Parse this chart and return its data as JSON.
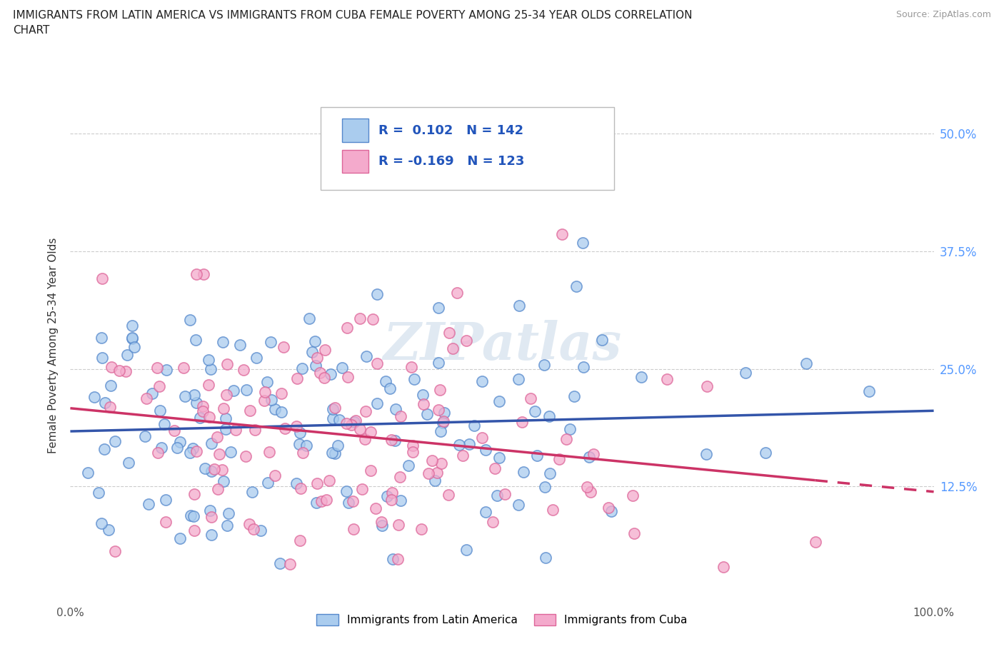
{
  "title": "IMMIGRANTS FROM LATIN AMERICA VS IMMIGRANTS FROM CUBA FEMALE POVERTY AMONG 25-34 YEAR OLDS CORRELATION\nCHART",
  "source_text": "Source: ZipAtlas.com",
  "ylabel": "Female Poverty Among 25-34 Year Olds",
  "xlim": [
    0.0,
    1.0
  ],
  "ylim": [
    0.0,
    0.55
  ],
  "ytick_positions": [
    0.125,
    0.25,
    0.375,
    0.5
  ],
  "ytick_labels": [
    "12.5%",
    "25.0%",
    "37.5%",
    "50.0%"
  ],
  "background_color": "#ffffff",
  "series1_face_color": "#aaccee",
  "series1_edge_color": "#5588cc",
  "series2_face_color": "#f4aacc",
  "series2_edge_color": "#dd6699",
  "series1_line_color": "#3355aa",
  "series2_line_color": "#cc3366",
  "R1": 0.102,
  "N1": 142,
  "R2": -0.169,
  "N2": 123,
  "legend_label1": "Immigrants from Latin America",
  "legend_label2": "Immigrants from Cuba",
  "watermark": "ZIPatlas",
  "right_tick_color": "#5599ff",
  "grid_color": "#cccccc"
}
